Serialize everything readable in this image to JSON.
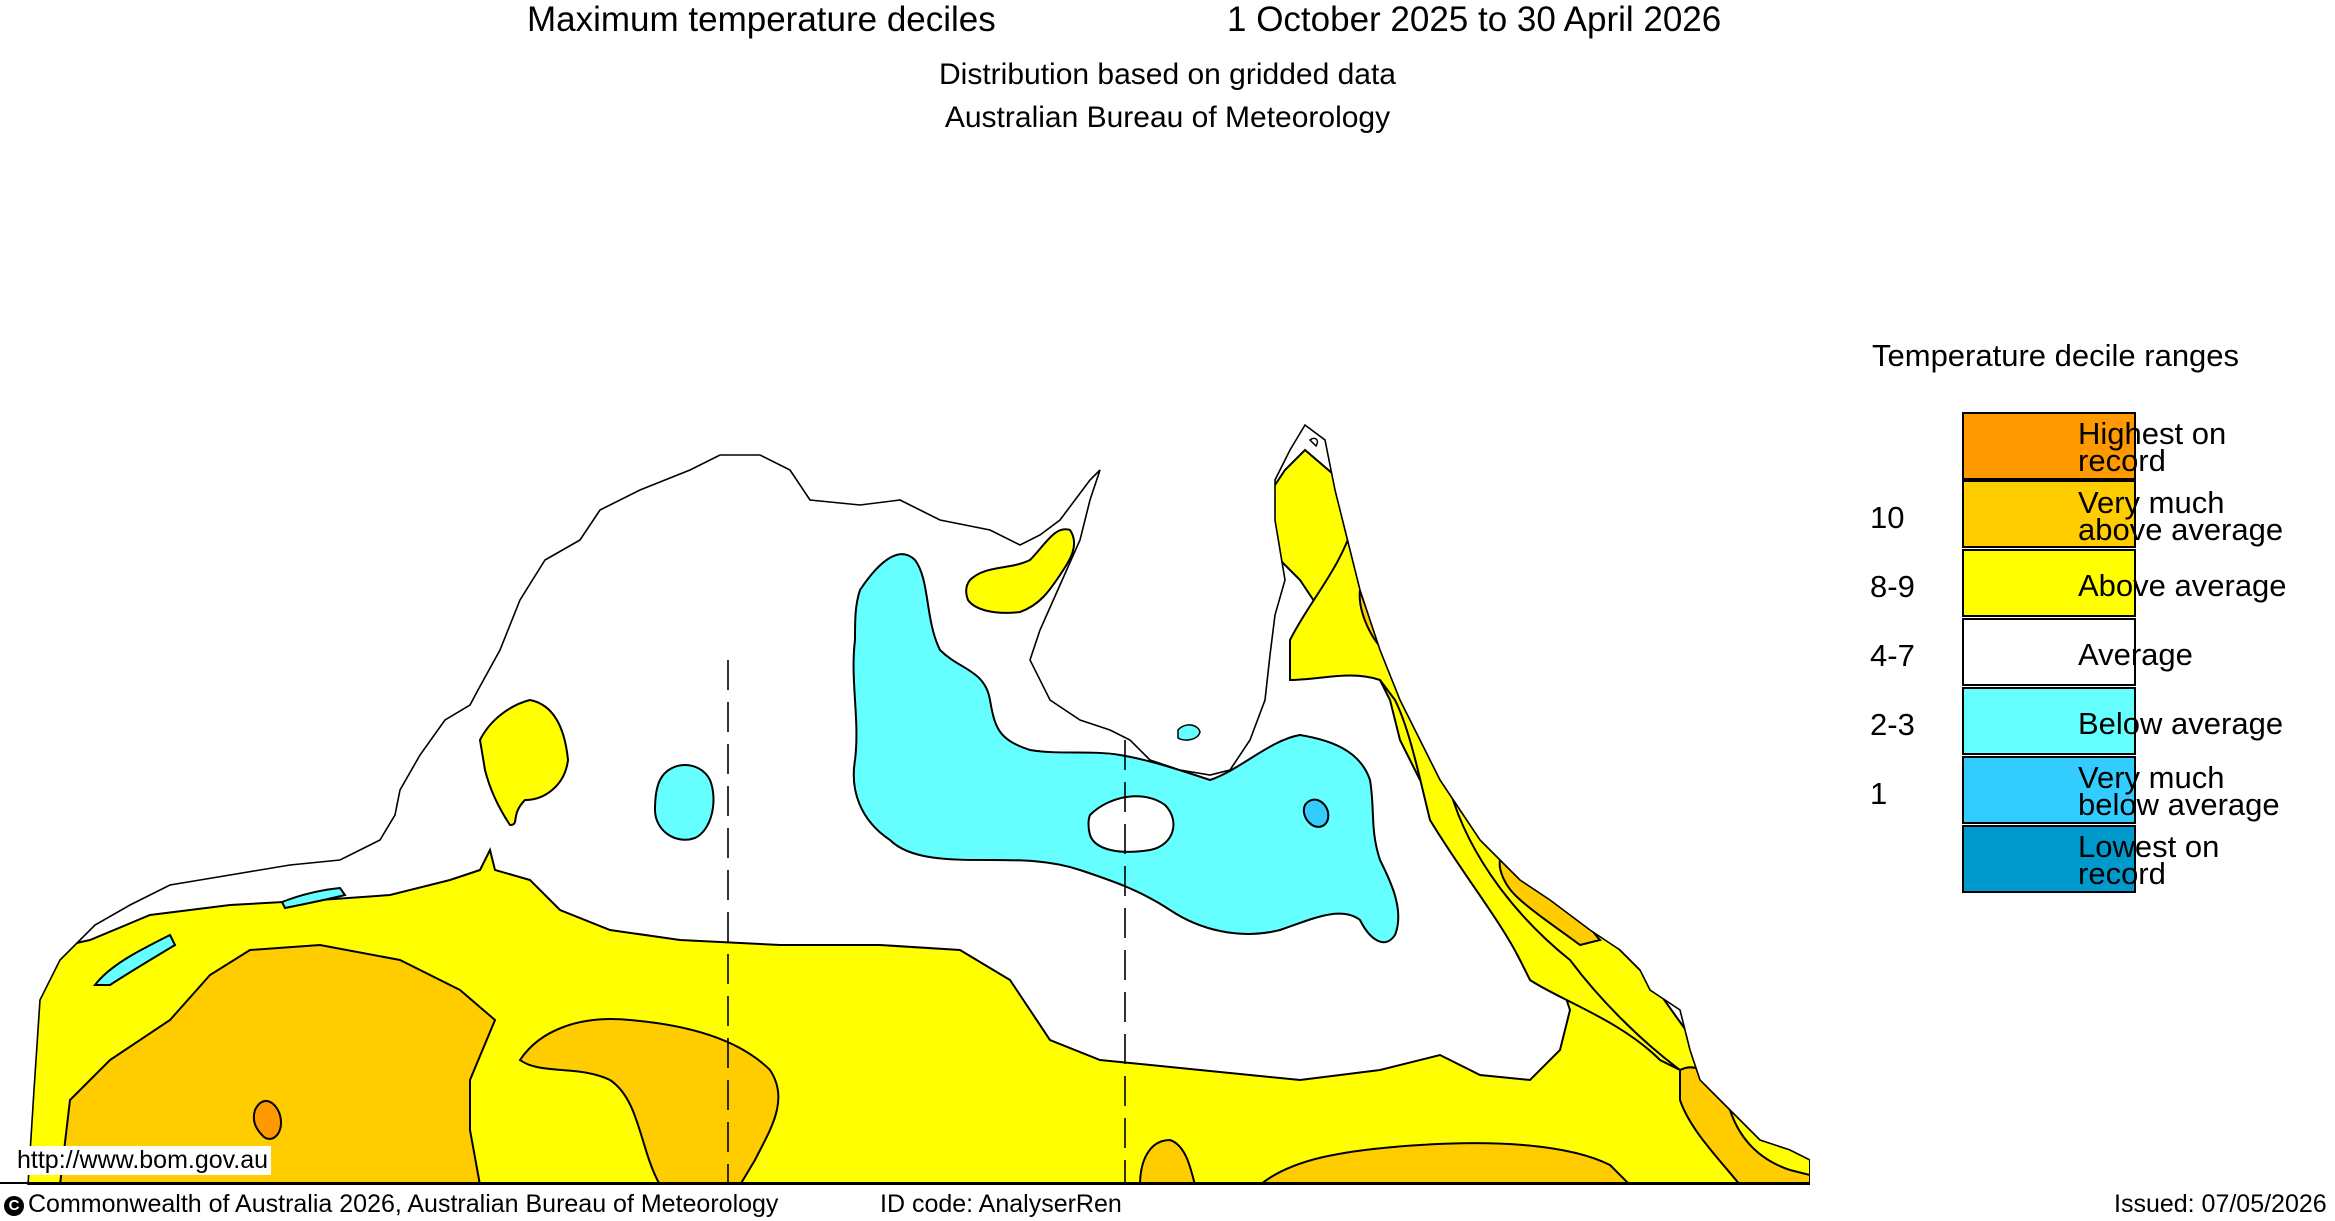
{
  "header": {
    "title": "Maximum temperature deciles",
    "period": "1 October 2025 to 30 April 2026",
    "subtitle1": "Distribution based on gridded data",
    "subtitle2": "Australian Bureau of Meteorology"
  },
  "legend": {
    "title": "Temperature decile ranges",
    "entries": [
      {
        "label_line1": "Highest on",
        "label_line2": "record",
        "range": "",
        "color": "#ff9900"
      },
      {
        "label_line1": "Very much",
        "label_line2": "above average",
        "range": "10",
        "color": "#ffcc00"
      },
      {
        "label_line1": "Above average",
        "label_line2": "",
        "range": "8-9",
        "color": "#ffff00"
      },
      {
        "label_line1": "Average",
        "label_line2": "",
        "range": "4-7",
        "color": "#ffffff"
      },
      {
        "label_line1": "Below average",
        "label_line2": "",
        "range": "2-3",
        "color": "#66ffff"
      },
      {
        "label_line1": "Very much",
        "label_line2": "below average",
        "range": "1",
        "color": "#33ccff"
      },
      {
        "label_line1": "Lowest on",
        "label_line2": "record",
        "range": "",
        "color": "#0099cc"
      }
    ]
  },
  "map": {
    "region": "Northern Australia",
    "layers": [
      "above-average",
      "very-much-above-average",
      "below-average",
      "very-much-below-average"
    ]
  },
  "footer": {
    "url": "http://www.bom.gov.au",
    "copyright_symbol": "C",
    "copyright": "Commonwealth of Australia 2026, Australian Bureau of Meteorology",
    "id_code": "ID code: AnalyserRen",
    "issued": "Issued: 07/05/2026"
  }
}
